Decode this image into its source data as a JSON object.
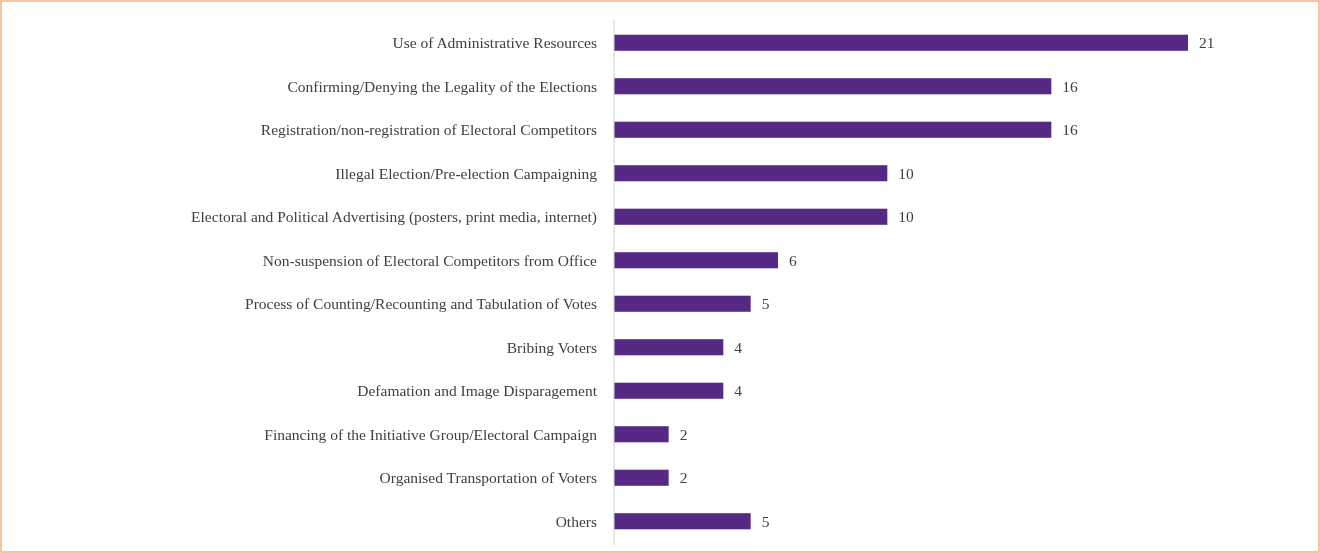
{
  "chart_data": {
    "type": "bar",
    "orientation": "horizontal",
    "data_labels": true,
    "categories": [
      "Use of Administrative Resources",
      "Confirming/Denying the Legality of the Elections",
      "Registration/non-registration of Electoral Competitors",
      "Illegal Election/Pre-election Campaigning",
      "Electoral and Political Advertising (posters, print media, internet)",
      "Non-suspension of Electoral Competitors from Office",
      "Process of Counting/Recounting and Tabulation of Votes",
      "Bribing Voters",
      "Defamation and Image Disparagement",
      "Financing of the Initiative Group/Electoral Campaign",
      "Organised Transportation of Voters",
      "Others"
    ],
    "values": [
      21,
      16,
      16,
      10,
      10,
      6,
      5,
      4,
      4,
      2,
      2,
      5
    ],
    "color": "#562a84"
  }
}
